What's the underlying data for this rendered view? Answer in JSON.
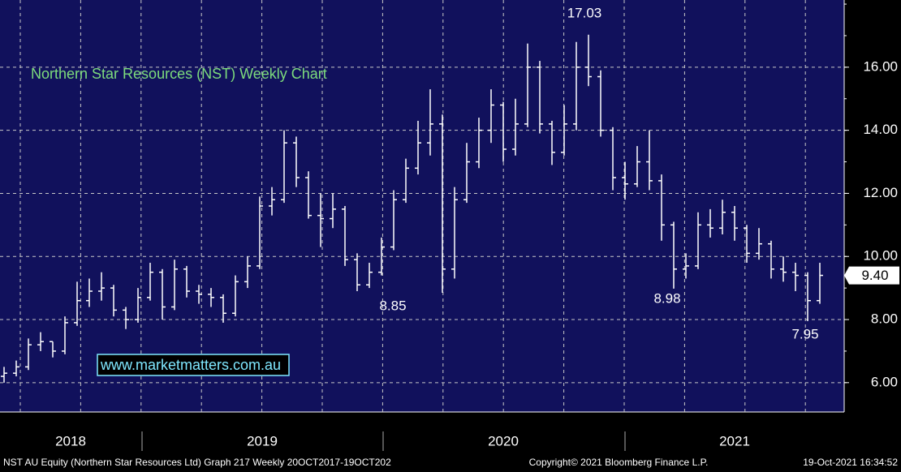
{
  "chart_data": {
    "type": "ohlc",
    "title": "Northern Star Resources (NST) Weekly Chart",
    "watermark": "www.marketmatters.com.au",
    "color": "#ffffff",
    "grid": true,
    "ylim": [
      5.07,
      18.13
    ],
    "yticks": [
      {
        "value": 6,
        "label": "6.00"
      },
      {
        "value": 8,
        "label": "8.00"
      },
      {
        "value": 10,
        "label": "10.00"
      },
      {
        "value": 12,
        "label": "12.00"
      },
      {
        "value": 14,
        "label": "14.00"
      },
      {
        "value": 16,
        "label": "16.00"
      }
    ],
    "last_price": {
      "value": 9.4,
      "label": "9.40"
    },
    "annotations": [
      "17.03",
      "8.85",
      "8.98",
      "7.95"
    ],
    "year_labels": [
      "2018",
      "2019",
      "2020",
      "2021"
    ],
    "footer": [
      "NST AU Equity (Northern Star Resources Ltd) Graph 217  Weekly 20OCT2017-19OCT202",
      "Copyright© 2021 Bloomberg Finance L.P.",
      "19-Oct-2021 16:34:52"
    ],
    "open": [
      6.2,
      6.3,
      6.5,
      7.2,
      7.3,
      7.0,
      7.9,
      8.6,
      8.9,
      9.0,
      8.3,
      8.0,
      8.7,
      9.5,
      8.4,
      9.6,
      8.9,
      8.8,
      8.7,
      8.2,
      9.2,
      9.7,
      11.6,
      11.8,
      13.6,
      12.5,
      11.3,
      11.2,
      11.5,
      9.9,
      9.1,
      9.5,
      10.3,
      11.8,
      12.8,
      13.6,
      14.2,
      9.6,
      11.8,
      13.0,
      14.0,
      14.8,
      13.4,
      14.2,
      16.0,
      14.2,
      13.3,
      14.2,
      16.0,
      15.7,
      14.0,
      12.5,
      12.3,
      13.0,
      12.4,
      11.0,
      9.6,
      9.7,
      11.0,
      10.9,
      11.4,
      10.9,
      10.1,
      10.4,
      9.6,
      9.5,
      9.4,
      8.6
    ],
    "high": [
      6.5,
      6.7,
      7.4,
      7.6,
      7.3,
      8.1,
      9.2,
      9.3,
      9.5,
      9.1,
      8.4,
      9.0,
      9.8,
      9.6,
      9.9,
      9.7,
      9.1,
      9.0,
      8.8,
      9.4,
      10.0,
      11.9,
      12.2,
      14.0,
      13.8,
      12.7,
      12.0,
      12.0,
      11.6,
      10.1,
      9.8,
      10.6,
      12.1,
      13.1,
      14.3,
      15.3,
      14.5,
      12.2,
      13.6,
      14.4,
      15.3,
      14.9,
      15.0,
      16.75,
      16.2,
      14.3,
      14.8,
      16.8,
      17.03,
      15.9,
      14.1,
      13.0,
      13.5,
      14.0,
      12.6,
      11.1,
      10.1,
      11.4,
      11.5,
      11.8,
      11.6,
      11.0,
      10.9,
      10.5,
      10.0,
      9.8,
      9.5,
      9.8
    ],
    "low": [
      6.0,
      6.2,
      6.4,
      7.0,
      6.8,
      6.9,
      7.8,
      8.4,
      8.6,
      8.1,
      7.7,
      7.9,
      8.6,
      8.0,
      8.3,
      8.7,
      8.5,
      8.4,
      7.9,
      8.1,
      9.0,
      9.6,
      11.3,
      11.7,
      12.2,
      11.2,
      10.3,
      10.9,
      9.7,
      8.9,
      9.0,
      9.4,
      10.2,
      11.7,
      12.6,
      13.2,
      8.85,
      9.3,
      11.7,
      12.8,
      13.6,
      13.0,
      13.2,
      14.1,
      13.9,
      12.9,
      13.2,
      14.0,
      15.4,
      13.8,
      12.1,
      11.8,
      12.2,
      12.1,
      10.5,
      8.98,
      9.3,
      9.6,
      10.6,
      10.7,
      10.5,
      9.8,
      9.9,
      9.3,
      9.2,
      8.9,
      7.95,
      8.5
    ],
    "close": [
      6.3,
      6.5,
      7.2,
      7.3,
      7.0,
      7.9,
      8.6,
      8.9,
      9.0,
      8.3,
      8.0,
      8.7,
      9.5,
      8.4,
      9.6,
      8.9,
      8.8,
      8.7,
      8.2,
      9.2,
      9.7,
      11.6,
      11.8,
      13.6,
      12.5,
      11.3,
      11.2,
      11.5,
      9.9,
      9.1,
      9.5,
      10.3,
      11.8,
      12.8,
      13.6,
      14.2,
      9.6,
      11.8,
      13.0,
      14.0,
      14.8,
      13.4,
      14.2,
      16.0,
      14.2,
      13.3,
      14.2,
      16.0,
      15.7,
      14.0,
      12.5,
      12.3,
      13.0,
      12.4,
      11.0,
      9.6,
      9.7,
      11.0,
      10.9,
      11.4,
      10.9,
      10.1,
      10.4,
      9.6,
      9.5,
      9.4,
      8.6,
      9.4
    ]
  }
}
